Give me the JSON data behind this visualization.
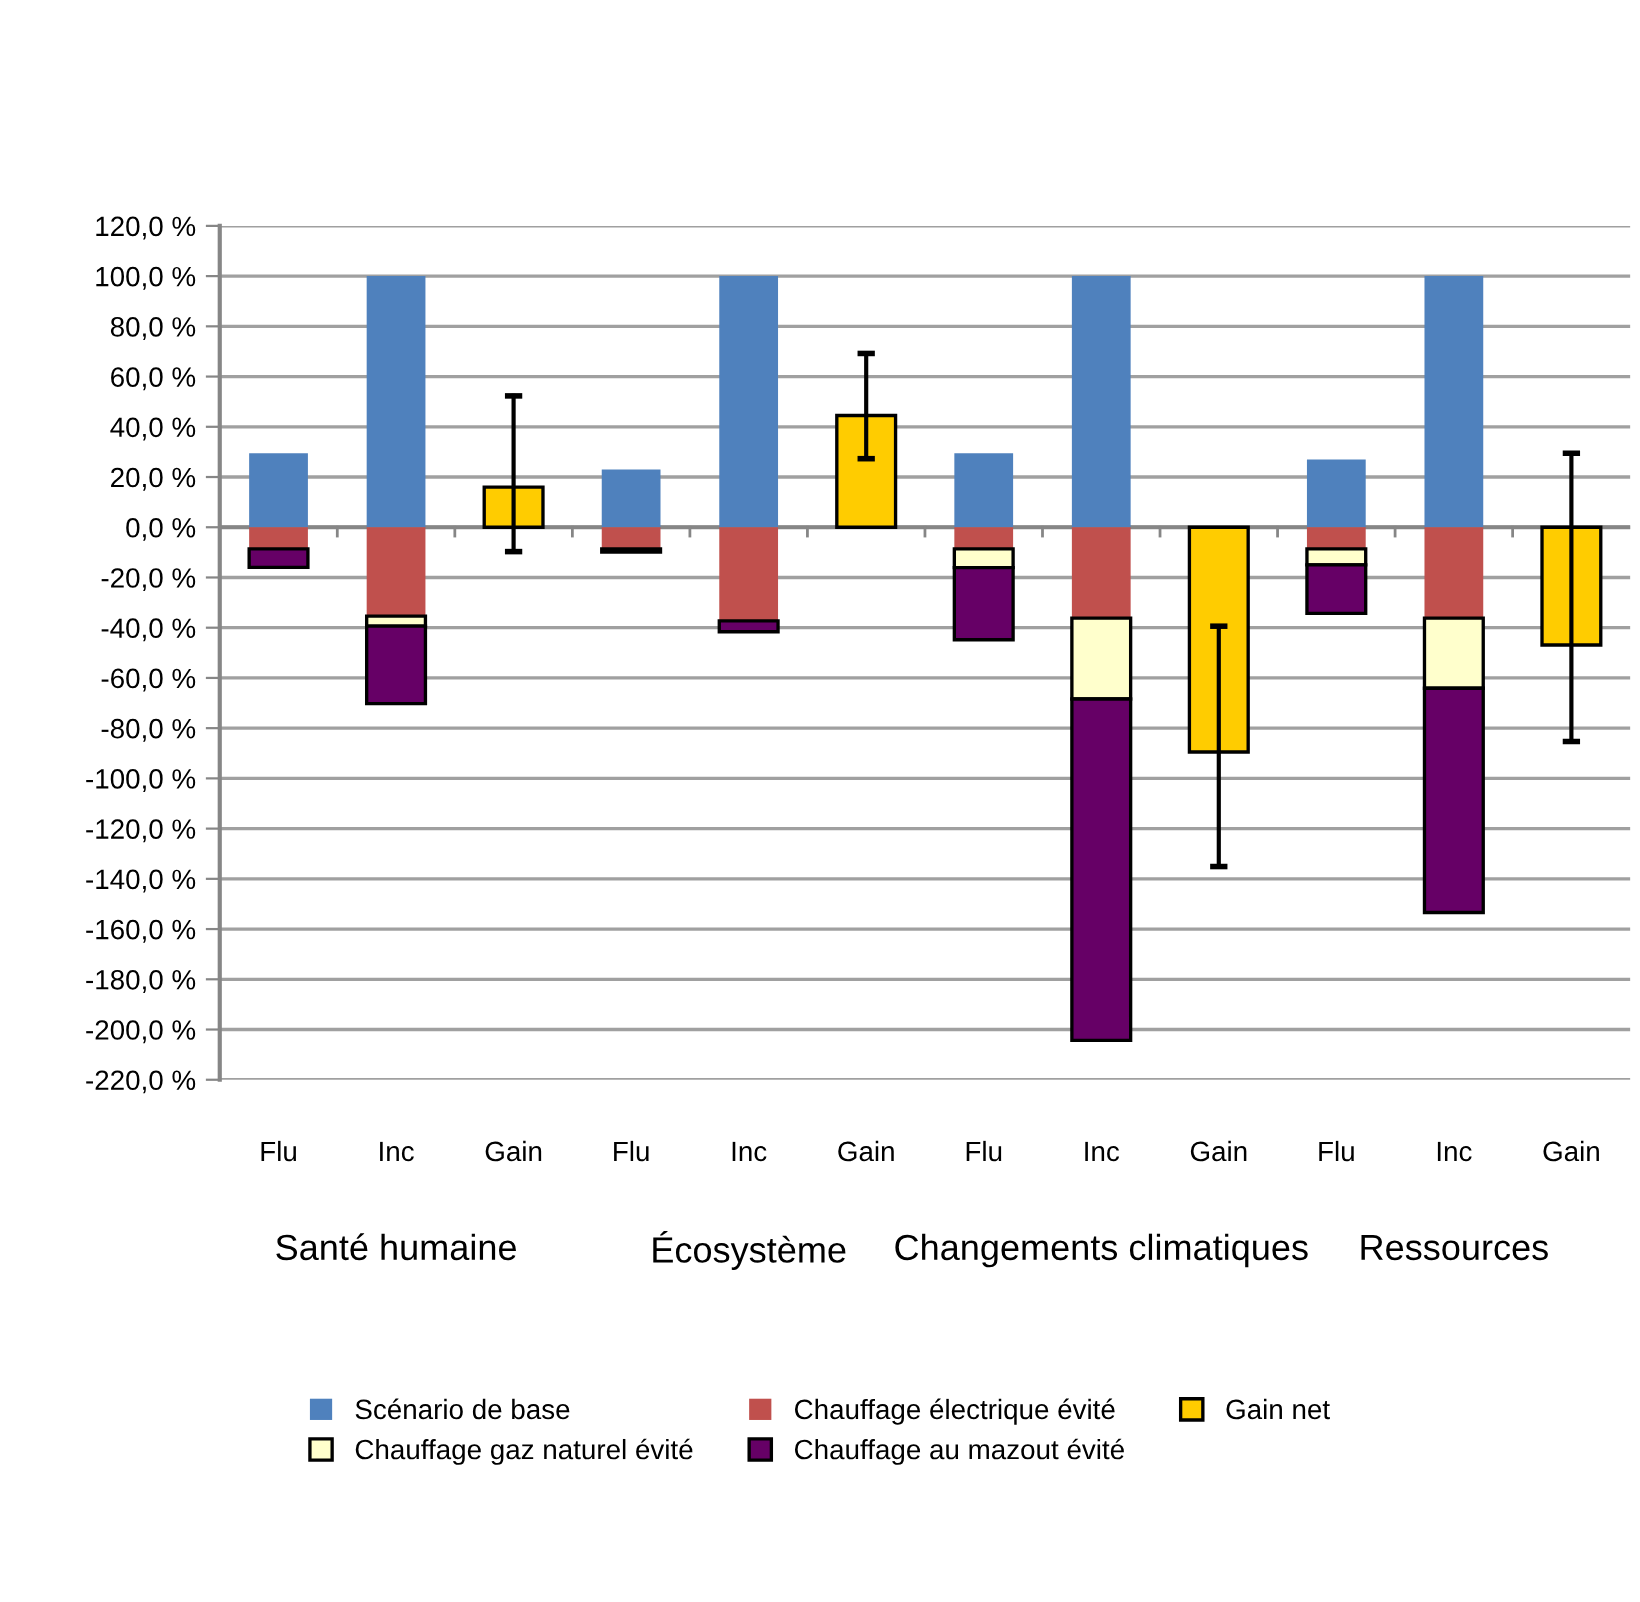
{
  "chart_data": {
    "type": "bar",
    "stacked": true,
    "categories": [
      "Flu",
      "Inc",
      "Gain",
      "Flu",
      "Inc",
      "Gain",
      "Flu",
      "Inc",
      "Gain",
      "Flu",
      "Inc",
      "Gain"
    ],
    "annotations": [
      "Santé humaine",
      "Écosystème",
      "Changements climatiques",
      "Ressources"
    ],
    "series": [
      {
        "name": "Scénario de base",
        "color": "#4f81bd",
        "values": [
          29.5,
          100,
          null,
          23,
          100,
          null,
          29.5,
          100,
          null,
          27,
          100,
          null
        ]
      },
      {
        "name": "Chauffage électrique évité",
        "color": "#c0504d",
        "values": [
          -8.6,
          -35.4,
          null,
          -8.6,
          -37.3,
          null,
          -8.6,
          -36.2,
          null,
          -8.6,
          -36.2,
          null
        ]
      },
      {
        "name": "Chauffage gaz naturel évité",
        "color": "#ffffcc",
        "values": [
          null,
          -4,
          null,
          null,
          null,
          null,
          -7.5,
          -32.2,
          null,
          -6.4,
          -27.9,
          null
        ]
      },
      {
        "name": "Chauffage au mazout évité",
        "color": "#660066",
        "values": [
          -7.4,
          -30.8,
          null,
          -1.3,
          -4.3,
          null,
          -28.7,
          -135.9,
          null,
          -19.3,
          -89.3,
          null
        ]
      },
      {
        "name": "Gain net",
        "color": "#ffcc00",
        "values": [
          null,
          null,
          16,
          null,
          null,
          44.5,
          null,
          null,
          -89.5,
          null,
          null,
          -46.9
        ],
        "errors": [
          null,
          null,
          [
            -9.7,
            52.3
          ],
          null,
          null,
          [
            27.3,
            69.2
          ],
          null,
          null,
          [
            -135.1,
            -39.4
          ],
          null,
          null,
          [
            -85.3,
            29.5
          ]
        ]
      }
    ],
    "ylim": [
      -220,
      120
    ],
    "yticks": [
      {
        "value": -220,
        "label": "-220,0 %"
      },
      {
        "value": -200,
        "label": "-200,0 %"
      },
      {
        "value": -180,
        "label": "-180,0 %"
      },
      {
        "value": -160,
        "label": "-160,0 %"
      },
      {
        "value": -140,
        "label": "-140,0 %"
      },
      {
        "value": -120,
        "label": "-120,0 %"
      },
      {
        "value": -100,
        "label": "-100,0 %"
      },
      {
        "value": -80,
        "label": "-80,0 %"
      },
      {
        "value": -60,
        "label": "-60,0 %"
      },
      {
        "value": -40,
        "label": "-40,0 %"
      },
      {
        "value": -20,
        "label": "-20,0 %"
      },
      {
        "value": 0,
        "label": "0,0 %"
      },
      {
        "value": 20,
        "label": "20,0 %"
      },
      {
        "value": 40,
        "label": "40,0 %"
      },
      {
        "value": 60,
        "label": "60,0 %"
      },
      {
        "value": 80,
        "label": "80,0 %"
      },
      {
        "value": 100,
        "label": "100,0 %"
      },
      {
        "value": 120,
        "label": "120,0 %"
      }
    ],
    "grid": "y",
    "legend": "bottom"
  }
}
